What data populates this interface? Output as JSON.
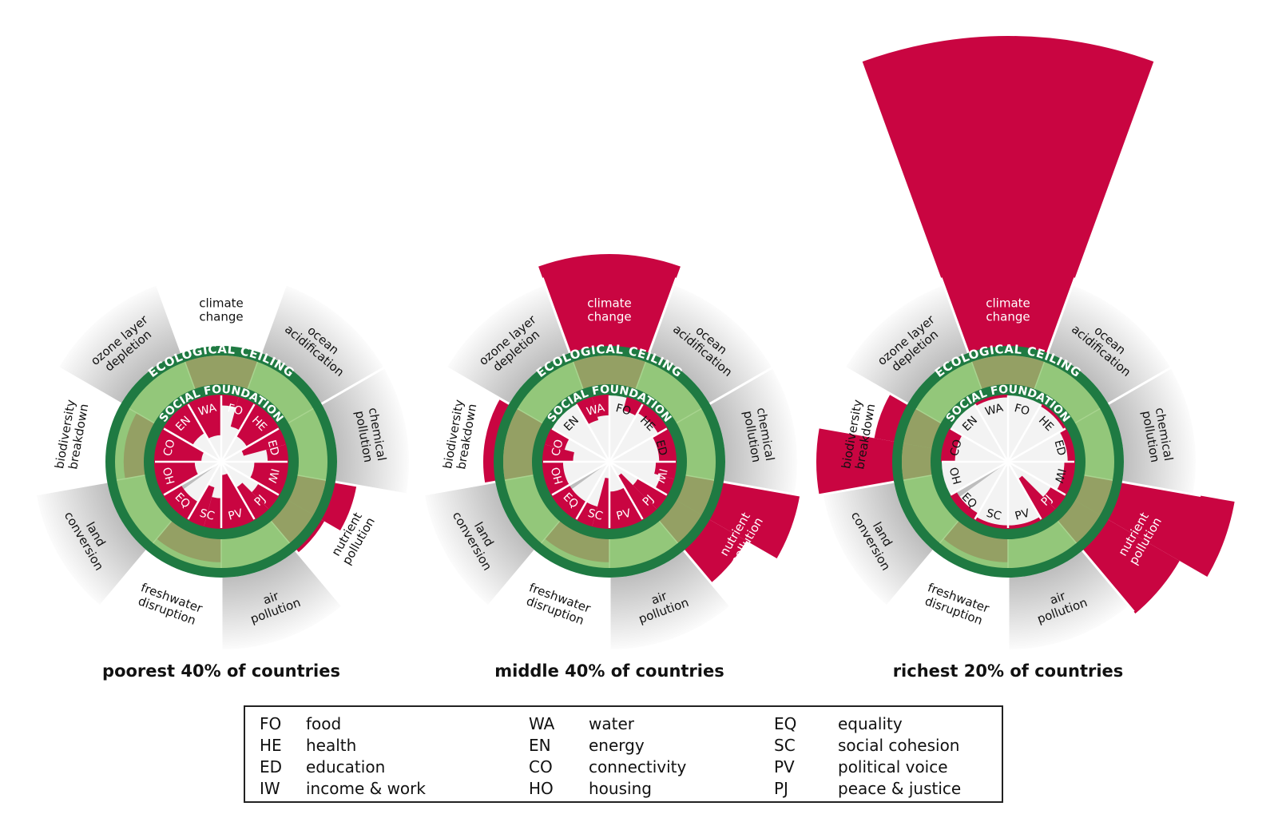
{
  "colors": {
    "overshoot_red": "#c90541",
    "ring_dark_green": "#1f7a42",
    "safe_light_green": "#93c77a",
    "within_boundary_olive": "#94a064",
    "sector_gray": "#bdbdbd"
  },
  "ring_labels": {
    "ceiling": "ECOLOGICAL CEILING",
    "foundation": "SOCIAL FOUNDATION"
  },
  "ecological_dimensions": [
    {
      "key": "climate",
      "lines": [
        "climate",
        "change"
      ]
    },
    {
      "key": "ocean",
      "lines": [
        "ocean",
        "acidification"
      ]
    },
    {
      "key": "chemical",
      "lines": [
        "chemical",
        "pollution"
      ]
    },
    {
      "key": "nutrient",
      "lines": [
        "nutrient",
        "pollution"
      ]
    },
    {
      "key": "air",
      "lines": [
        "air",
        "pollution"
      ]
    },
    {
      "key": "freshwater",
      "lines": [
        "freshwater",
        "disruption"
      ]
    },
    {
      "key": "land",
      "lines": [
        "land",
        "conversion"
      ]
    },
    {
      "key": "biodiversity",
      "lines": [
        "biodiversity",
        "breakdown"
      ]
    },
    {
      "key": "ozone",
      "lines": [
        "ozone layer",
        "depletion"
      ]
    }
  ],
  "social_codes": [
    "FO",
    "HE",
    "ED",
    "IW",
    "PJ",
    "PV",
    "SC",
    "EQ",
    "HO",
    "CO",
    "EN",
    "WA"
  ],
  "doughnuts": [
    {
      "title": "poorest 40% of countries",
      "ecological_use_relative_to_ceiling": [
        1.0,
        0,
        0,
        [
          1.27,
          1.04
        ],
        0,
        0.8,
        0,
        0.7,
        0
      ],
      "social_shortfall_fraction": [
        [
          0.15,
          0.45
        ],
        0.55,
        [
          0.65,
          0.3
        ],
        0.5,
        [
          0.35,
          0.55
        ],
        0.8,
        [
          0.45,
          0.6
        ],
        0.3,
        0.6,
        0.7,
        0.5,
        0.6
      ]
    },
    {
      "title": "middle 40% of countries",
      "ecological_use_relative_to_ceiling": [
        2.15,
        0,
        0,
        [
          1.97,
          1.53
        ],
        0,
        0.8,
        0,
        1.13,
        0
      ],
      "social_shortfall_fraction": [
        [
          0,
          0.2
        ],
        0.15,
        0.25,
        [
          0.3,
          0.2
        ],
        [
          0.5,
          0.75
        ],
        0.55,
        [
          0.75,
          0.3
        ],
        0.3,
        0.3,
        [
          0.45,
          0.3
        ],
        0,
        [
          0.35,
          0.3
        ]
      ]
    },
    {
      "title": "richest 20% of countries",
      "ecological_use_relative_to_ceiling": [
        4.88,
        0,
        0,
        [
          2.43,
          2.03
        ],
        0,
        0.8,
        0,
        [
          1.95,
          1.25
        ],
        0
      ],
      "social_shortfall_fraction": [
        0,
        0.03,
        0.1,
        0.15,
        [
          0.25,
          0.7
        ],
        0.04,
        0.04,
        0.1,
        0,
        0.2,
        0,
        0.03
      ]
    }
  ],
  "legend": [
    [
      {
        "code": "FO",
        "label": "food"
      },
      {
        "code": "HE",
        "label": "health"
      },
      {
        "code": "ED",
        "label": "education"
      },
      {
        "code": "IW",
        "label": "income & work"
      }
    ],
    [
      {
        "code": "WA",
        "label": "water"
      },
      {
        "code": "EN",
        "label": "energy"
      },
      {
        "code": "CO",
        "label": "connectivity"
      },
      {
        "code": "HO",
        "label": "housing"
      }
    ],
    [
      {
        "code": "EQ",
        "label": "equality"
      },
      {
        "code": "SC",
        "label": "social cohesion"
      },
      {
        "code": "PV",
        "label": "political voice"
      },
      {
        "code": "PJ",
        "label": "peace & justice"
      }
    ]
  ]
}
